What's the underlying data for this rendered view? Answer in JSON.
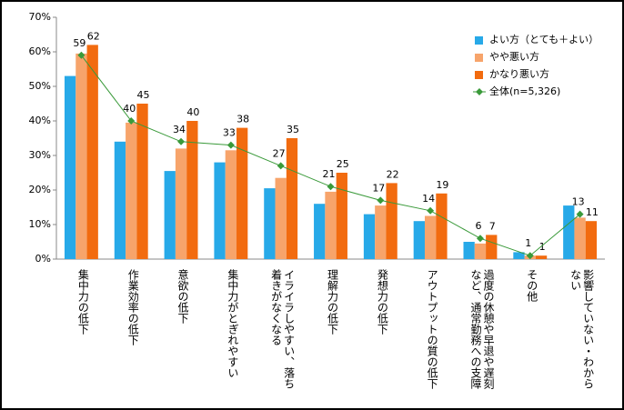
{
  "chart_data": {
    "type": "bar",
    "categories": [
      "集中力の低下",
      "作業効率の低下",
      "意欲の低下",
      "集中力がとぎれやすい",
      "イライラしやすい、落ち着きがなくなる",
      "理解力の低下",
      "発想力の低下",
      "アウトプットの質の低下",
      "過度の休憩や早退や遅刻など、通常勤務への支障",
      "その他",
      "影響していない・わからない"
    ],
    "series": [
      {
        "name": "よい方（とても＋よい）",
        "color": "#27a9e8",
        "values": [
          53,
          34,
          25.5,
          28,
          20.5,
          16,
          13,
          11,
          5,
          2,
          15.5
        ]
      },
      {
        "name": "やや悪い方",
        "color": "#f7a46b",
        "values": [
          59.5,
          39.5,
          32,
          31.5,
          23.5,
          19.5,
          15.5,
          12.5,
          4.5,
          1,
          12
        ]
      },
      {
        "name": "かなり悪い方",
        "color": "#f26b0f",
        "values": [
          62,
          45,
          40,
          38,
          35,
          25,
          22,
          19,
          7,
          1,
          11
        ],
        "labels": true
      },
      {
        "name": "全体(n=5,326)",
        "color": "#3a9a3a",
        "type": "line",
        "values": [
          59,
          40,
          34,
          33,
          27,
          21,
          17,
          14,
          6,
          1,
          13
        ],
        "labels": true
      }
    ],
    "ylim": [
      0,
      70
    ],
    "yticks": [
      {
        "value": 0,
        "label": "0%"
      },
      {
        "value": 10,
        "label": "10%"
      },
      {
        "value": 20,
        "label": "20%"
      },
      {
        "value": 30,
        "label": "30%"
      },
      {
        "value": 40,
        "label": "40%"
      },
      {
        "value": 50,
        "label": "50%"
      },
      {
        "value": 60,
        "label": "60%"
      },
      {
        "value": 70,
        "label": "70%"
      }
    ],
    "grid": false,
    "legend": "top-right"
  }
}
